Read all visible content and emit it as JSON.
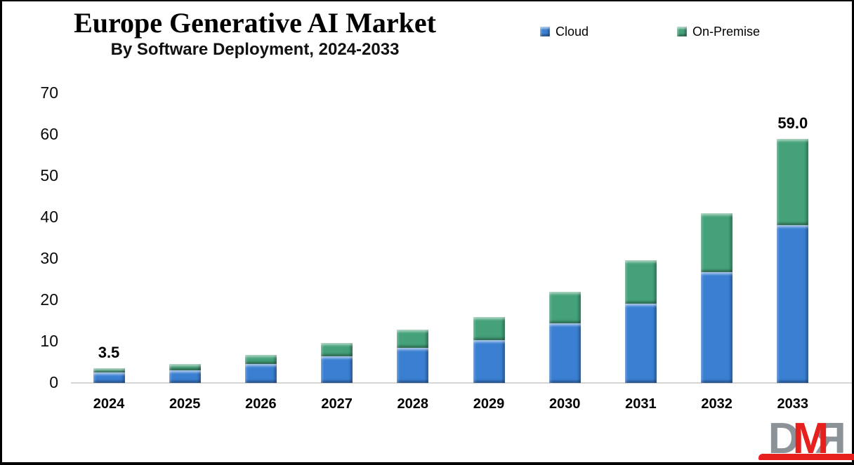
{
  "page": {
    "background": "#ffffff",
    "border_color": "#000000"
  },
  "header": {
    "title": "Europe Generative AI Market",
    "subtitle": "By Software Deployment, 2024-2033"
  },
  "legend": {
    "items": [
      {
        "label": "Cloud",
        "color": "#3a7fd2"
      },
      {
        "label": "On-Premise",
        "color": "#44a179"
      }
    ]
  },
  "chart_data": {
    "type": "bar",
    "stacked": true,
    "title": "Europe Generative AI Market",
    "subtitle": "By Software Deployment, 2024-2033",
    "categories": [
      "2024",
      "2025",
      "2026",
      "2027",
      "2028",
      "2029",
      "2030",
      "2031",
      "2032",
      "2033"
    ],
    "series": [
      {
        "name": "Cloud",
        "color": "#3a7fd2",
        "values": [
          2.5,
          3.1,
          4.5,
          6.4,
          8.5,
          10.4,
          14.4,
          19.2,
          26.7,
          38.1
        ]
      },
      {
        "name": "On-Premise",
        "color": "#44a179",
        "values": [
          1.0,
          1.4,
          2.3,
          3.3,
          4.4,
          5.5,
          7.6,
          10.5,
          14.3,
          20.9
        ]
      }
    ],
    "totals": [
      3.5,
      4.5,
      6.8,
      9.7,
      12.9,
      15.9,
      22.0,
      29.7,
      41.0,
      59.0
    ],
    "annotations": [
      {
        "category": "2024",
        "text": "3.5"
      },
      {
        "category": "2033",
        "text": "59.0"
      }
    ],
    "xlabel": "",
    "ylabel": "",
    "ylim": [
      0,
      70
    ],
    "yticks": [
      0,
      10,
      20,
      30,
      40,
      50,
      60,
      70
    ],
    "grid": false,
    "legend_position": "top-right",
    "axis_color": "#d5d5d5"
  },
  "logo": {
    "letters": [
      {
        "text": "D",
        "color": "#8b9298",
        "mirrored": false
      },
      {
        "text": "M",
        "color": "#e8201d",
        "mirrored": false
      },
      {
        "text": "R",
        "color": "#8b9298",
        "mirrored": true
      }
    ],
    "accent_color": "#e8201d"
  }
}
